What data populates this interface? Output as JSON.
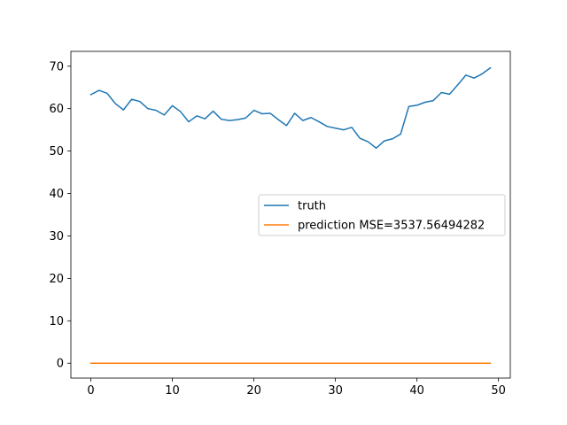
{
  "chart_data": {
    "type": "line",
    "title": "",
    "xlabel": "",
    "ylabel": "",
    "xlim": [
      -2.45,
      51.45
    ],
    "ylim": [
      -3.5,
      73.5
    ],
    "xticks": [
      0,
      10,
      20,
      30,
      40,
      50
    ],
    "yticks": [
      0,
      10,
      20,
      30,
      40,
      50,
      60,
      70
    ],
    "grid": false,
    "legend_position": "center-right",
    "x": [
      0,
      1,
      2,
      3,
      4,
      5,
      6,
      7,
      8,
      9,
      10,
      11,
      12,
      13,
      14,
      15,
      16,
      17,
      18,
      19,
      20,
      21,
      22,
      23,
      24,
      25,
      26,
      27,
      28,
      29,
      30,
      31,
      32,
      33,
      34,
      35,
      36,
      37,
      38,
      39,
      40,
      41,
      42,
      43,
      44,
      45,
      46,
      47,
      48,
      49
    ],
    "series": [
      {
        "name": "truth",
        "color": "#1f77b4",
        "values": [
          63.3,
          64.3,
          63.6,
          61.2,
          59.7,
          62.2,
          61.7,
          60.0,
          59.6,
          58.5,
          60.7,
          59.3,
          56.9,
          58.3,
          57.6,
          59.4,
          57.5,
          57.2,
          57.4,
          57.8,
          59.6,
          58.8,
          58.9,
          57.4,
          56.0,
          58.9,
          57.2,
          57.9,
          56.9,
          55.8,
          55.4,
          55.0,
          55.6,
          53.0,
          52.2,
          50.7,
          52.4,
          52.9,
          54.0,
          60.5,
          60.8,
          61.5,
          61.9,
          63.8,
          63.4,
          65.6,
          67.9,
          67.2,
          68.2,
          69.6
        ]
      },
      {
        "name": "prediction MSE=3537.56494282",
        "color": "#ff7f0e",
        "values": [
          0,
          0,
          0,
          0,
          0,
          0,
          0,
          0,
          0,
          0,
          0,
          0,
          0,
          0,
          0,
          0,
          0,
          0,
          0,
          0,
          0,
          0,
          0,
          0,
          0,
          0,
          0,
          0,
          0,
          0,
          0,
          0,
          0,
          0,
          0,
          0,
          0,
          0,
          0,
          0,
          0,
          0,
          0,
          0,
          0,
          0,
          0,
          0,
          0,
          0
        ]
      }
    ]
  }
}
